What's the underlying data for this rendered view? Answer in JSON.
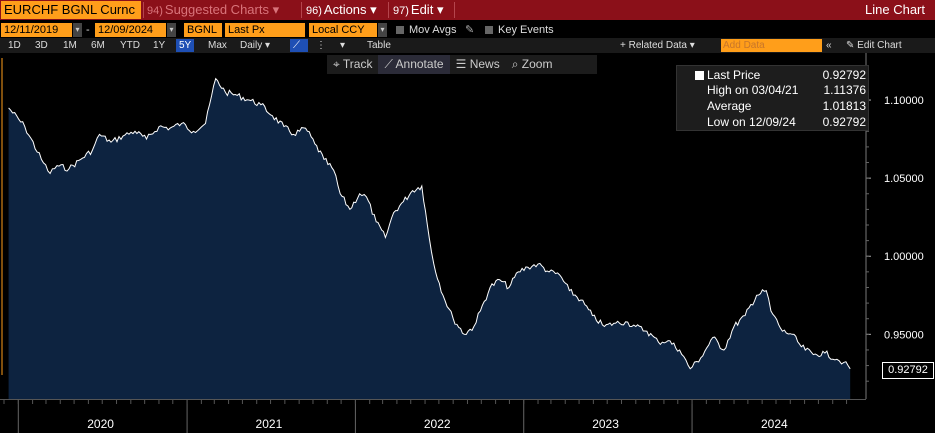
{
  "topbar": {
    "security": "EURCHF BGNL Curnc",
    "suggested_num": "94)",
    "suggested": "Suggested Charts",
    "actions_num": "96)",
    "actions": "Actions",
    "edit_num": "97)",
    "edit": "Edit",
    "title": "Line Chart"
  },
  "controls": {
    "start_date": "12/11/2019",
    "date_sep": "-",
    "end_date": "12/09/2024",
    "source": "BGNL",
    "field": "Last Px",
    "currency": "Local CCY",
    "mov_avgs": "Mov Avgs",
    "key_events": "Key Events"
  },
  "periods": {
    "items": [
      "1D",
      "3D",
      "1M",
      "6M",
      "YTD",
      "1Y",
      "5Y",
      "Max"
    ],
    "active": "5Y",
    "frequency": "Daily",
    "table": "Table",
    "related_data": "+ Related Data",
    "add_data_placeholder": "Add Data",
    "edit_chart": "Edit Chart"
  },
  "chart_tools": {
    "track": "Track",
    "annotate": "Annotate",
    "news": "News",
    "zoom": "Zoom"
  },
  "legend": {
    "last_price_label": "Last Price",
    "last_price": "0.92792",
    "high_label": "High on 03/04/21",
    "high": "1.11376",
    "average_label": "Average",
    "average": "1.01813",
    "low_label": "Low on 12/09/24",
    "low": "0.92792"
  },
  "colors": {
    "accent_orange": "#ff9e1a",
    "title_bar": "#8b1019",
    "area_fill": "#0d2340",
    "line": "#ffffff"
  },
  "chart_data": {
    "type": "area",
    "title": "",
    "series": [
      {
        "name": "Last Price",
        "x": [
          "2019-12-11",
          "2020-01-15",
          "2020-02-20",
          "2020-03-10",
          "2020-03-25",
          "2020-04-20",
          "2020-05-15",
          "2020-06-10",
          "2020-06-25",
          "2020-07-20",
          "2020-08-15",
          "2020-09-10",
          "2020-10-05",
          "2020-11-01",
          "2020-11-25",
          "2020-12-20",
          "2021-01-15",
          "2021-02-10",
          "2021-03-04",
          "2021-03-25",
          "2021-04-20",
          "2021-05-15",
          "2021-06-10",
          "2021-07-05",
          "2021-07-30",
          "2021-08-20",
          "2021-09-15",
          "2021-10-05",
          "2021-10-25",
          "2021-11-15",
          "2021-11-29",
          "2021-12-20",
          "2022-01-10",
          "2022-01-25",
          "2022-02-15",
          "2022-03-07",
          "2022-03-25",
          "2022-04-15",
          "2022-05-05",
          "2022-05-25",
          "2022-06-10",
          "2022-06-20",
          "2022-07-10",
          "2022-08-01",
          "2022-08-25",
          "2022-09-15",
          "2022-09-29",
          "2022-10-20",
          "2022-11-10",
          "2022-11-30",
          "2022-12-20",
          "2023-01-10",
          "2023-02-01",
          "2023-02-25",
          "2023-03-20",
          "2023-04-10",
          "2023-05-05",
          "2023-05-30",
          "2023-06-25",
          "2023-07-15",
          "2023-08-10",
          "2023-09-01",
          "2023-09-25",
          "2023-10-20",
          "2023-11-10",
          "2023-12-05",
          "2023-12-28",
          "2024-01-20",
          "2024-02-15",
          "2024-03-10",
          "2024-04-01",
          "2024-04-25",
          "2024-05-20",
          "2024-06-10",
          "2024-06-20",
          "2024-07-15",
          "2024-08-05",
          "2024-08-25",
          "2024-09-20",
          "2024-10-15",
          "2024-11-10",
          "2024-11-25",
          "2024-12-09"
        ],
        "values": [
          1.095,
          1.083,
          1.062,
          1.053,
          1.058,
          1.056,
          1.062,
          1.068,
          1.078,
          1.073,
          1.077,
          1.08,
          1.075,
          1.083,
          1.082,
          1.085,
          1.08,
          1.085,
          1.11376,
          1.105,
          1.103,
          1.1,
          1.097,
          1.09,
          1.083,
          1.078,
          1.082,
          1.072,
          1.062,
          1.055,
          1.04,
          1.03,
          1.04,
          1.038,
          1.022,
          1.012,
          1.028,
          1.035,
          1.042,
          1.045,
          1.012,
          0.995,
          0.975,
          0.96,
          0.95,
          0.955,
          0.965,
          0.98,
          0.985,
          0.98,
          0.99,
          0.993,
          0.995,
          0.99,
          0.988,
          0.978,
          0.972,
          0.962,
          0.955,
          0.957,
          0.958,
          0.955,
          0.952,
          0.945,
          0.946,
          0.94,
          0.928,
          0.935,
          0.948,
          0.94,
          0.955,
          0.962,
          0.975,
          0.978,
          0.965,
          0.952,
          0.95,
          0.942,
          0.937,
          0.938,
          0.934,
          0.932,
          0.92792
        ]
      }
    ],
    "xlabels": [
      "2020",
      "2021",
      "2022",
      "2023",
      "2024"
    ],
    "ylim": [
      0.915,
      1.125
    ],
    "yticks": [
      "1.10000",
      "1.05000",
      "1.00000",
      "0.95000"
    ],
    "last_value_label": "0.92792",
    "grid": false
  }
}
